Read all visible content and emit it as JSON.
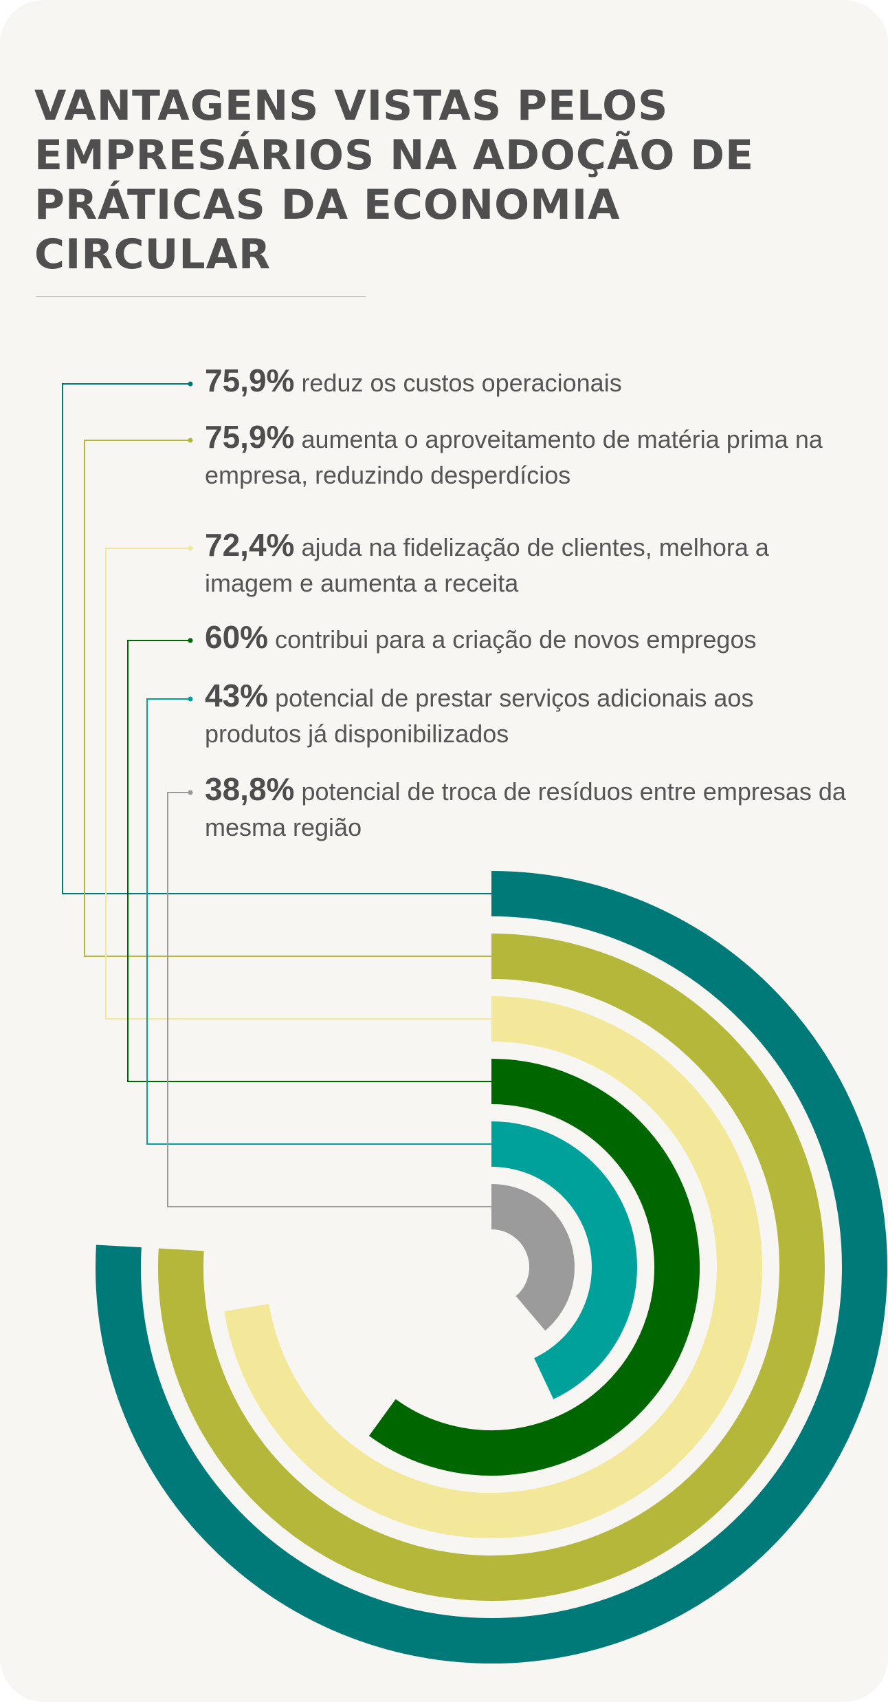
{
  "title": "VANTAGENS VISTAS PELOS EMPRESÁRIOS NA ADOÇÃO DE PRÁTICAS DA ECONOMIA CIRCULAR",
  "chart_data": {
    "type": "radial-bar",
    "title": "VANTAGENS VISTAS PELOS EMPRESÁRIOS NA ADOÇÃO DE PRÁTICAS DA ECONOMIA CIRCULAR",
    "max": 100,
    "unit": "%",
    "items": [
      {
        "pct": "75,9%",
        "value": 75.9,
        "label": "reduz os custos operacionais",
        "color": "#007a78"
      },
      {
        "pct": "75,9%",
        "value": 75.9,
        "label": "aumenta o aproveitamento de matéria prima na empresa, reduzindo desperdícios",
        "color": "#b4b739"
      },
      {
        "pct": "72,4%",
        "value": 72.4,
        "label": "ajuda na fidelização de clientes, melhora a imagem e aumenta a receita",
        "color": "#f3e89a"
      },
      {
        "pct": "60%",
        "value": 60,
        "label": "contribui para a criação de novos empregos",
        "color": "#006600"
      },
      {
        "pct": "43%",
        "value": 43,
        "label": "potencial de prestar serviços adicionais aos produtos já disponibilizados",
        "color": "#00a09b"
      },
      {
        "pct": "38,8%",
        "value": 38.8,
        "label": "potencial de troca de resíduos entre empresas da mesma região",
        "color": "#9b9b9b"
      }
    ]
  }
}
